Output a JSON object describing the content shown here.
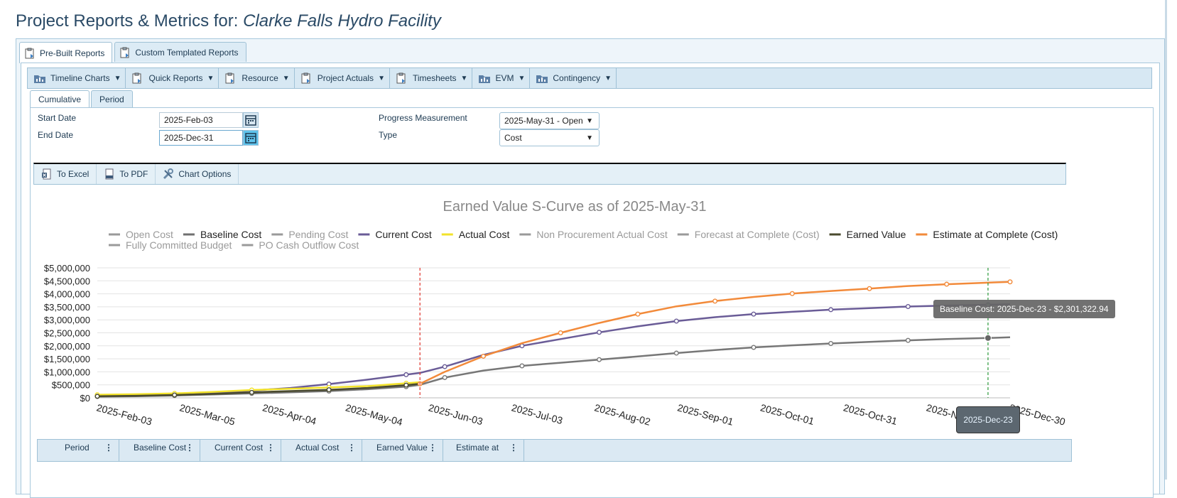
{
  "page": {
    "title_prefix": "Project Reports & Metrics for: ",
    "facility": "Clarke Falls Hydro Facility"
  },
  "top_tabs": [
    {
      "label": "Pre-Built Reports",
      "icon": "report-clipboard-icon"
    },
    {
      "label": "Custom Templated Reports",
      "icon": "report-clipboard-icon"
    }
  ],
  "menu": [
    {
      "label": "Timeline Charts",
      "icon": "folder-chart-icon"
    },
    {
      "label": "Quick Reports",
      "icon": "report-clipboard-icon"
    },
    {
      "label": "Resource",
      "icon": "report-clipboard-icon"
    },
    {
      "label": "Project Actuals",
      "icon": "report-clipboard-icon"
    },
    {
      "label": "Timesheets",
      "icon": "report-clipboard-icon"
    },
    {
      "label": "EVM",
      "icon": "folder-chart-icon"
    },
    {
      "label": "Contingency",
      "icon": "folder-chart-icon"
    }
  ],
  "sub_tabs": [
    "Cumulative",
    "Period"
  ],
  "form": {
    "start_date_label": "Start Date",
    "start_date_value": "2025-Feb-03",
    "end_date_label": "End Date",
    "end_date_value": "2025-Dec-31",
    "progress_label": "Progress Measurement",
    "progress_value": "2025-May-31 - Open",
    "type_label": "Type",
    "type_value": "Cost"
  },
  "toolbar": [
    {
      "label": "To Excel",
      "icon": "excel-export-icon"
    },
    {
      "label": "To PDF",
      "icon": "pdf-export-icon"
    },
    {
      "label": "Chart Options",
      "icon": "wrench-tools-icon"
    }
  ],
  "chart_data": {
    "type": "line",
    "title": "Earned Value S-Curve as of 2025-May-31",
    "legend": [
      {
        "name": "Open Cost",
        "color": "#9a9a9a",
        "visible": false
      },
      {
        "name": "Baseline Cost",
        "color": "#707070",
        "visible": true
      },
      {
        "name": "Pending Cost",
        "color": "#9a9a9a",
        "visible": false
      },
      {
        "name": "Current Cost",
        "color": "#6a5c97",
        "visible": true
      },
      {
        "name": "Actual Cost",
        "color": "#f2e22a",
        "visible": true
      },
      {
        "name": "Non Procurement Actual Cost",
        "color": "#9a9a9a",
        "visible": false
      },
      {
        "name": "Forecast at Complete (Cost)",
        "color": "#9a9a9a",
        "visible": false
      },
      {
        "name": "Earned Value",
        "color": "#4a4a2e",
        "visible": true
      },
      {
        "name": "Estimate at Complete (Cost)",
        "color": "#f28a3a",
        "visible": true
      },
      {
        "name": "Fully Committed Budget",
        "color": "#9a9a9a",
        "visible": false
      },
      {
        "name": "PO Cash Outflow Cost",
        "color": "#9a9a9a",
        "visible": false
      }
    ],
    "y_ticks": [
      "$0",
      "$500,000",
      "$1,000,000",
      "$1,500,000",
      "$2,000,000",
      "$2,500,000",
      "$3,000,000",
      "$3,500,000",
      "$4,000,000",
      "$4,500,000",
      "$5,000,000"
    ],
    "ylim": [
      0,
      5000000
    ],
    "x_ticks": [
      "2025-Feb-03",
      "2025-Mar-05",
      "2025-Apr-04",
      "2025-May-04",
      "2025-Jun-03",
      "2025-Jul-03",
      "2025-Aug-02",
      "2025-Sep-01",
      "2025-Oct-01",
      "2025-Oct-31",
      "2025-Nov",
      "2025-Dec-30"
    ],
    "x_range": [
      "2025-Feb-03",
      "2025-Dec-31"
    ],
    "status_date": "2025-May-31",
    "hover_date": "2025-Dec-23",
    "series": [
      {
        "name": "Baseline Cost",
        "color": "#777777",
        "points": [
          [
            "2025-Feb-03",
            50000
          ],
          [
            "2025-Feb-17",
            60000
          ],
          [
            "2025-Mar-03",
            90000
          ],
          [
            "2025-Mar-17",
            130000
          ],
          [
            "2025-Mar-31",
            170000
          ],
          [
            "2025-Apr-14",
            210000
          ],
          [
            "2025-Apr-28",
            260000
          ],
          [
            "2025-May-12",
            330000
          ],
          [
            "2025-May-26",
            430000
          ],
          [
            "2025-May-31",
            500000
          ],
          [
            "2025-Jun-09",
            780000
          ],
          [
            "2025-Jun-23",
            1050000
          ],
          [
            "2025-Jul-07",
            1230000
          ],
          [
            "2025-Jul-21",
            1350000
          ],
          [
            "2025-Aug-04",
            1470000
          ],
          [
            "2025-Aug-18",
            1590000
          ],
          [
            "2025-Sep-01",
            1720000
          ],
          [
            "2025-Sep-15",
            1840000
          ],
          [
            "2025-Sep-29",
            1940000
          ],
          [
            "2025-Oct-13",
            2020000
          ],
          [
            "2025-Oct-27",
            2090000
          ],
          [
            "2025-Nov-10",
            2150000
          ],
          [
            "2025-Nov-24",
            2210000
          ],
          [
            "2025-Dec-08",
            2260000
          ],
          [
            "2025-Dec-23",
            2301322.94
          ],
          [
            "2025-Dec-31",
            2330000
          ]
        ]
      },
      {
        "name": "Current Cost",
        "color": "#6a5c97",
        "points": [
          [
            "2025-Feb-03",
            80000
          ],
          [
            "2025-Feb-17",
            90000
          ],
          [
            "2025-Mar-03",
            130000
          ],
          [
            "2025-Mar-17",
            190000
          ],
          [
            "2025-Mar-31",
            280000
          ],
          [
            "2025-Apr-14",
            380000
          ],
          [
            "2025-Apr-28",
            530000
          ],
          [
            "2025-May-12",
            700000
          ],
          [
            "2025-May-26",
            890000
          ],
          [
            "2025-May-31",
            960000
          ],
          [
            "2025-Jun-09",
            1200000
          ],
          [
            "2025-Jun-23",
            1650000
          ],
          [
            "2025-Jul-07",
            2000000
          ],
          [
            "2025-Jul-21",
            2260000
          ],
          [
            "2025-Aug-04",
            2520000
          ],
          [
            "2025-Aug-18",
            2750000
          ],
          [
            "2025-Sep-01",
            2950000
          ],
          [
            "2025-Sep-15",
            3100000
          ],
          [
            "2025-Sep-29",
            3220000
          ],
          [
            "2025-Oct-13",
            3310000
          ],
          [
            "2025-Oct-27",
            3390000
          ],
          [
            "2025-Nov-10",
            3450000
          ],
          [
            "2025-Nov-24",
            3510000
          ],
          [
            "2025-Dec-08",
            3550000
          ],
          [
            "2025-Dec-23",
            3580000
          ],
          [
            "2025-Dec-31",
            3600000
          ]
        ]
      },
      {
        "name": "Actual Cost",
        "color": "#f2e22a",
        "points": [
          [
            "2025-Feb-03",
            120000
          ],
          [
            "2025-Feb-17",
            140000
          ],
          [
            "2025-Mar-03",
            170000
          ],
          [
            "2025-Mar-17",
            230000
          ],
          [
            "2025-Mar-31",
            300000
          ],
          [
            "2025-Apr-14",
            350000
          ],
          [
            "2025-Apr-28",
            400000
          ],
          [
            "2025-May-12",
            450000
          ],
          [
            "2025-May-26",
            560000
          ],
          [
            "2025-May-31",
            600000
          ]
        ]
      },
      {
        "name": "Earned Value",
        "color": "#4a4a2e",
        "points": [
          [
            "2025-Feb-03",
            60000
          ],
          [
            "2025-Feb-17",
            80000
          ],
          [
            "2025-Mar-03",
            110000
          ],
          [
            "2025-Mar-17",
            150000
          ],
          [
            "2025-Mar-31",
            210000
          ],
          [
            "2025-Apr-14",
            260000
          ],
          [
            "2025-Apr-28",
            310000
          ],
          [
            "2025-May-12",
            380000
          ],
          [
            "2025-May-26",
            490000
          ],
          [
            "2025-May-31",
            540000
          ]
        ]
      },
      {
        "name": "Estimate at Complete (Cost)",
        "color": "#f28a3a",
        "points": [
          [
            "2025-May-31",
            540000
          ],
          [
            "2025-Jun-09",
            1000000
          ],
          [
            "2025-Jun-23",
            1600000
          ],
          [
            "2025-Jul-07",
            2100000
          ],
          [
            "2025-Jul-21",
            2500000
          ],
          [
            "2025-Aug-04",
            2880000
          ],
          [
            "2025-Aug-18",
            3220000
          ],
          [
            "2025-Sep-01",
            3520000
          ],
          [
            "2025-Sep-15",
            3720000
          ],
          [
            "2025-Sep-29",
            3880000
          ],
          [
            "2025-Oct-13",
            4010000
          ],
          [
            "2025-Oct-27",
            4110000
          ],
          [
            "2025-Nov-10",
            4200000
          ],
          [
            "2025-Nov-24",
            4300000
          ],
          [
            "2025-Dec-08",
            4370000
          ],
          [
            "2025-Dec-23",
            4430000
          ],
          [
            "2025-Dec-31",
            4460000
          ]
        ]
      }
    ],
    "tooltip": "Baseline Cost: 2025-Dec-23 - $2,301,322.94"
  },
  "grid_columns": [
    "Period",
    "Baseline Cost",
    "Current Cost",
    "Actual Cost",
    "Earned Value",
    "Estimate at"
  ],
  "colors": {
    "accent": "#2a4a66",
    "panel_border": "#9fc1d6",
    "status_line": "#e0332b",
    "hover_line": "#2a9a3a"
  }
}
